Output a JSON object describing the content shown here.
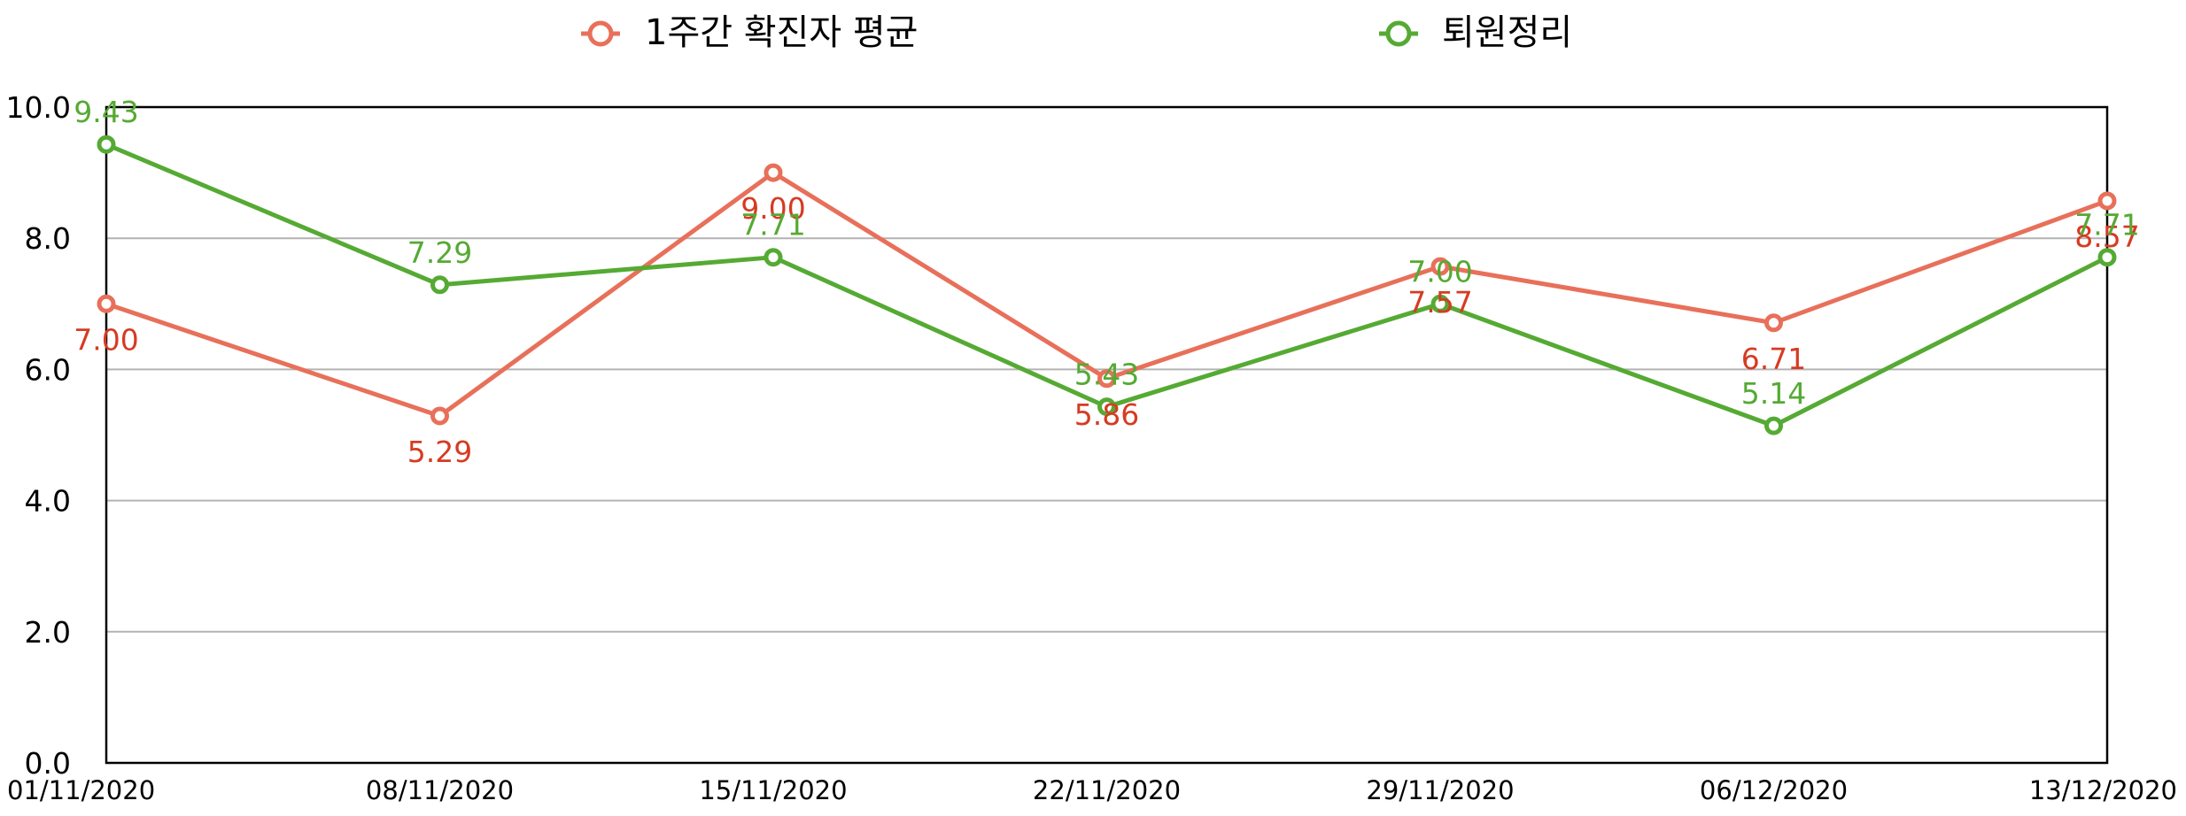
{
  "chart_data": {
    "type": "line",
    "title": "",
    "xlabel": "",
    "ylabel": "",
    "categories": [
      "01/11/2020",
      "08/11/2020",
      "15/11/2020",
      "22/11/2020",
      "29/11/2020",
      "06/12/2020",
      "13/12/2020"
    ],
    "ylim": [
      0,
      10
    ],
    "yticks": [
      "0.0",
      "2.0",
      "4.0",
      "6.0",
      "8.0",
      "10.0"
    ],
    "grid": true,
    "legend_position": "top",
    "series": [
      {
        "name": "1주간 확진자 평균",
        "values": [
          7.0,
          5.29,
          9.0,
          5.86,
          7.57,
          6.71,
          8.57
        ],
        "labels": [
          "7.00",
          "5.29",
          "9.00",
          "5.86",
          "7.57",
          "6.71",
          "8.57"
        ],
        "line_color": "#E8705A",
        "label_color": "#D63B22"
      },
      {
        "name": "퇴원정리",
        "values": [
          9.43,
          7.29,
          7.71,
          5.43,
          7.0,
          5.14,
          7.71
        ],
        "labels": [
          "9.43",
          "7.29",
          "7.71",
          "5.43",
          "7.00",
          "5.14",
          "7.71"
        ],
        "line_color": "#55AA33",
        "label_color": "#55AA33"
      }
    ]
  }
}
